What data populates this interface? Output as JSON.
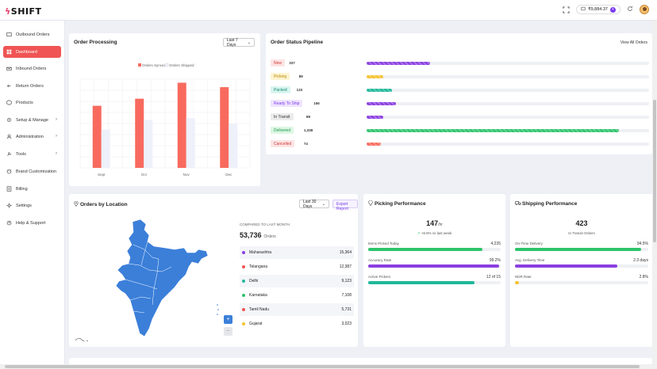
{
  "header": {
    "logo_text": "SHIFT",
    "wallet_balance": "₹9,884.37",
    "wallet_add": "+"
  },
  "sidebar": {
    "items": [
      {
        "label": "Outbound Orders",
        "icon": "outbound-icon",
        "chevron": false,
        "active": false
      },
      {
        "label": "Dashboard",
        "icon": "dashboard-icon",
        "chevron": false,
        "active": true
      },
      {
        "label": "Inbound Orders",
        "icon": "inbound-icon",
        "chevron": false,
        "active": false
      },
      {
        "label": "Return Orders",
        "icon": "return-icon",
        "chevron": false,
        "active": false
      },
      {
        "label": "Products",
        "icon": "products-icon",
        "chevron": false,
        "active": false
      },
      {
        "label": "Setup & Manage",
        "icon": "setup-icon",
        "chevron": true,
        "active": false
      },
      {
        "label": "Administration",
        "icon": "admin-icon",
        "chevron": true,
        "active": false
      },
      {
        "label": "Tools",
        "icon": "tools-icon",
        "chevron": true,
        "active": false
      },
      {
        "label": "Brand Customization",
        "icon": "brand-icon",
        "chevron": false,
        "active": false
      },
      {
        "label": "Billing",
        "icon": "billing-icon",
        "chevron": false,
        "active": false
      },
      {
        "label": "Settings",
        "icon": "settings-icon",
        "chevron": false,
        "active": false
      },
      {
        "label": "Help & Support",
        "icon": "help-icon",
        "chevron": false,
        "active": false
      }
    ]
  },
  "order_processing": {
    "title": "Order Processing",
    "range": "Last 7 Days",
    "chart_data": {
      "type": "bar",
      "categories": [
        "Sept",
        "Oct",
        "Nov",
        "Dec"
      ],
      "series": [
        {
          "name": "Orders Synced",
          "color": "#f86a5e",
          "values": [
            70,
            78,
            96,
            91
          ]
        },
        {
          "name": "Orders Shipped",
          "color": "#eef0fa",
          "values": [
            43,
            54,
            56,
            50
          ]
        }
      ],
      "ylim": [
        0,
        100
      ],
      "grid": true,
      "legend": "top-center"
    }
  },
  "pipeline": {
    "title": "Order Status Pipeline",
    "view_all": "View All Orders",
    "max": 1500,
    "rows": [
      {
        "label": "New",
        "count": "337",
        "value": 337,
        "bg": "#fde4e4",
        "fg": "#d33b3b",
        "fill": "#8b3fe0"
      },
      {
        "label": "Picking",
        "count": "89",
        "value": 89,
        "bg": "#fff4d1",
        "fg": "#b78a00",
        "fill": "#f5c230"
      },
      {
        "label": "Packed",
        "count": "133",
        "value": 133,
        "bg": "#d9f5ef",
        "fg": "#128c73",
        "fill": "#20b89a"
      },
      {
        "label": "Ready To Ship",
        "count": "156",
        "value": 156,
        "bg": "#efe4ff",
        "fg": "#7c3aed",
        "fill": "#8b3fe0"
      },
      {
        "label": "In Transit",
        "count": "89",
        "value": 89,
        "bg": "#ececec",
        "fg": "#333333",
        "fill": "#8b3fe0"
      },
      {
        "label": "Delivered",
        "count": "1,338",
        "value": 1338,
        "bg": "#ddf6e3",
        "fg": "#1f9a4a",
        "fill": "#2ec46b"
      },
      {
        "label": "Cancelled",
        "count": "74",
        "value": 74,
        "bg": "#fde4e4",
        "fg": "#d33b3b",
        "fill": "#f86a5e"
      }
    ]
  },
  "location": {
    "title": "Orders by Location",
    "range": "Last 30 Days",
    "export": "Export Report",
    "compare_label": "COMPARED TO LAST MONTH",
    "total": "53,736",
    "total_unit": "Orders",
    "zoom_in": "+",
    "zoom_out": "−",
    "rows": [
      {
        "name": "Maharashtra",
        "value": "15,364",
        "color": "#8b3fe0"
      },
      {
        "name": "Telangana",
        "value": "12,387",
        "color": "#f05454"
      },
      {
        "name": "Delhi",
        "value": "9,123",
        "color": "#20b89a"
      },
      {
        "name": "Karnataka",
        "value": "7,108",
        "color": "#2ec46b"
      },
      {
        "name": "Tamil Nadu",
        "value": "5,731",
        "color": "#f05454"
      },
      {
        "name": "Gujarat",
        "value": "3,023",
        "color": "#f5c230"
      }
    ]
  },
  "picking": {
    "title": "Picking Performance",
    "big": "147",
    "big_unit": "/hr",
    "trend": "+8.8% vs last week",
    "metrics": [
      {
        "label": "Items Picked Today",
        "value": "4,235",
        "pct": 0.86,
        "color": "#2ec46b"
      },
      {
        "label": "Accuracy Rate",
        "value": "99.2%",
        "pct": 0.99,
        "color": "#8b3fe0"
      },
      {
        "label": "Active Pickers",
        "value": "12 of 15",
        "pct": 0.8,
        "color": "#20b89a"
      }
    ]
  },
  "shipping": {
    "title": "Shipping Performance",
    "big": "423",
    "sub": "In Transit Orders",
    "metrics": [
      {
        "label": "On-Time Delivery",
        "value": "94.5%",
        "pct": 0.945,
        "color": "#2ec46b"
      },
      {
        "label": "Avg. Delivery Time",
        "value": "2.3 days",
        "pct": 0.77,
        "color": "#8b3fe0"
      },
      {
        "label": "NDR Rate",
        "value": "2.8%",
        "pct": 0.03,
        "color": "#f5c230"
      }
    ]
  }
}
